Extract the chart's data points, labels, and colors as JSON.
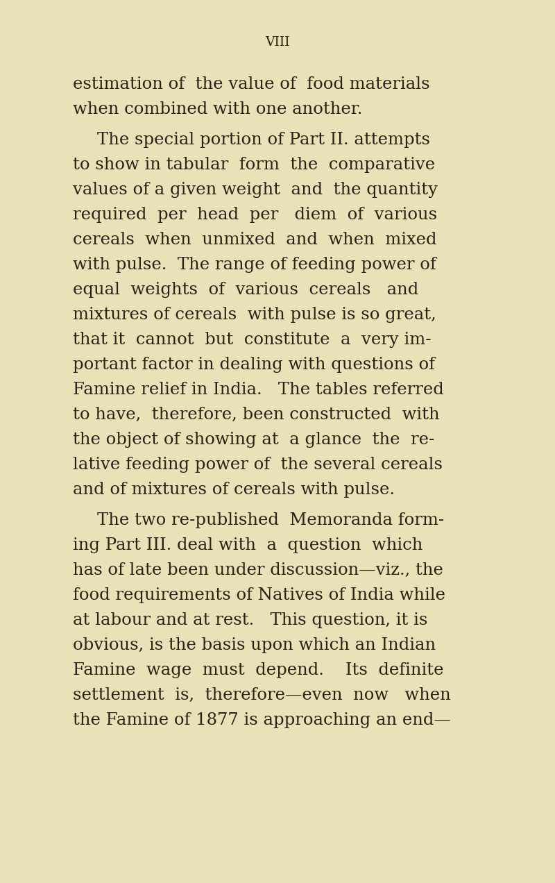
{
  "background_color": "#e8e2b8",
  "page_number": "VIII",
  "text_color": "#2a2015",
  "font_size_body": 17.5,
  "font_size_header": 13.5,
  "paragraphs": [
    {
      "indent": false,
      "lines": [
        "estimation of  the value of  food materials",
        "when combined with one another."
      ]
    },
    {
      "indent": true,
      "lines": [
        "The special portion of Part II. attempts",
        "to show in tabular  form  the  comparative",
        "values of a given weight  and  the quantity",
        "required  per  head  per   diem  of  various",
        "cereals  when  unmixed  and  when  mixed",
        "with pulse.  The range of feeding power of",
        "equal  weights  of  various  cereals   and",
        "mixtures of cereals  with pulse is so great,",
        "that it  cannot  but  constitute  a  very im-",
        "portant factor in dealing with questions of",
        "Famine relief in India.   The tables referred",
        "to have,  therefore, been constructed  with",
        "the object of showing at  a glance  the  re-",
        "lative feeding power of  the several cereals",
        "and of mixtures of cereals with pulse."
      ]
    },
    {
      "indent": true,
      "lines": [
        "The two re-published  Memoranda form-",
        "ing Part III. deal with  a  question  which",
        "has of late been under discussion—viz., the",
        "food requirements of Natives of India while",
        "at labour and at rest.   This question, it is",
        "obvious, is the basis upon which an Indian",
        "Famine  wage  must  depend.    Its  definite",
        "settlement  is,  therefore—even  now   when",
        "the Famine of 1877 is approaching an end—"
      ]
    }
  ]
}
